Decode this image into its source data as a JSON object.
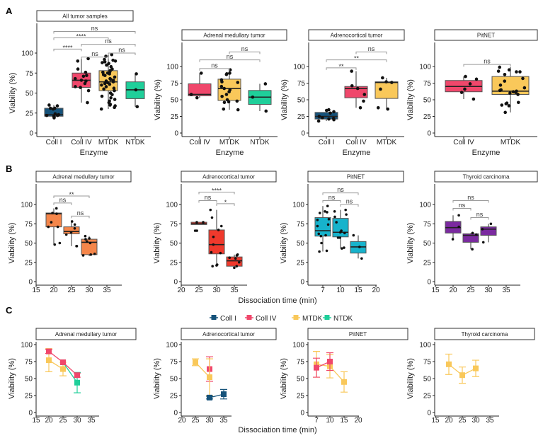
{
  "panel_letters": [
    "A",
    "B",
    "C"
  ],
  "legend": [
    {
      "name": "Coll I",
      "color": "#15527a"
    },
    {
      "name": "Coll IV",
      "color": "#f0476b"
    },
    {
      "name": "MTDK",
      "color": "#f9c85a"
    },
    {
      "name": "NTDK",
      "color": "#1fcf9a"
    }
  ],
  "chart_data": [
    {
      "id": "A1",
      "type": "box",
      "title": "All tumor samples",
      "xlabel": "Enzyme",
      "ylabel": "Viability (%)",
      "yticks": [
        0,
        25,
        50,
        75,
        100
      ],
      "categories": [
        "Coll I",
        "Coll IV",
        "MTDK",
        "NTDK"
      ],
      "boxes": [
        {
          "cat": "Coll I",
          "color": "#15527a",
          "min": 18,
          "q1": 21,
          "median": 23,
          "q3": 31,
          "max": 35,
          "points": [
            35,
            34,
            31,
            30,
            31,
            23,
            22,
            21,
            20,
            19,
            22,
            24
          ]
        },
        {
          "cat": "Coll IV",
          "color": "#f0476b",
          "min": 38,
          "q1": 57,
          "median": 66,
          "q3": 75,
          "max": 93,
          "points": [
            93,
            90,
            80,
            76,
            72,
            71,
            68,
            66,
            65,
            62,
            58,
            57,
            53,
            38
          ]
        },
        {
          "cat": "MTDK",
          "color": "#f9c85a",
          "min": 30,
          "q1": 53,
          "median": 64,
          "q3": 78,
          "max": 98,
          "points": [
            98,
            96,
            92,
            91,
            90,
            89,
            88,
            87,
            85,
            83,
            80,
            78,
            77,
            76,
            75,
            74,
            73,
            72,
            70,
            68,
            67,
            66,
            65,
            64,
            63,
            62,
            61,
            60,
            58,
            56,
            55,
            53,
            50,
            48,
            46,
            44,
            42,
            40,
            38,
            36,
            35,
            34,
            32,
            30
          ]
        },
        {
          "cat": "NTDK",
          "color": "#1fcf9a",
          "min": 33,
          "q1": 43,
          "median": 54,
          "q3": 64,
          "max": 74,
          "points": [
            74,
            54,
            33
          ]
        }
      ],
      "comparisons": [
        {
          "from": "Coll IV",
          "to": "MTDK",
          "label": "ns"
        },
        {
          "from": "MTDK",
          "to": "NTDK",
          "label": "ns"
        },
        {
          "from": "Coll I",
          "to": "Coll IV",
          "label": "****"
        },
        {
          "from": "Coll IV",
          "to": "NTDK",
          "label": "ns"
        },
        {
          "from": "Coll I",
          "to": "MTDK",
          "label": "****"
        },
        {
          "from": "Coll I",
          "to": "NTDK",
          "label": "ns"
        }
      ]
    },
    {
      "id": "A2",
      "type": "box",
      "title": "Adrenal medullary tumor",
      "xlabel": "Enzyme",
      "ylabel": "Viability (%)",
      "yticks": [
        0,
        25,
        50,
        75,
        100
      ],
      "categories": [
        "Coll IV",
        "MTDK",
        "NTDK"
      ],
      "boxes": [
        {
          "cat": "Coll IV",
          "color": "#f0476b",
          "min": 53,
          "q1": 56,
          "median": 58,
          "q3": 74,
          "max": 90,
          "points": [
            90,
            58,
            53
          ]
        },
        {
          "cat": "MTDK",
          "color": "#f9c85a",
          "min": 35,
          "q1": 49,
          "median": 67,
          "q3": 81,
          "max": 95,
          "points": [
            95,
            90,
            89,
            88,
            80,
            77,
            76,
            70,
            67,
            65,
            62,
            58,
            55,
            50,
            48,
            47,
            46,
            36,
            35
          ]
        },
        {
          "cat": "NTDK",
          "color": "#1fcf9a",
          "min": 33,
          "q1": 43,
          "median": 54,
          "q3": 64,
          "max": 74,
          "points": [
            74,
            54,
            33
          ]
        }
      ],
      "comparisons": [
        {
          "from": "Coll IV",
          "to": "MTDK",
          "label": "ns"
        },
        {
          "from": "Coll IV",
          "to": "NTDK",
          "label": "ns"
        },
        {
          "from": "MTDK",
          "to": "NTDK",
          "label": "ns"
        }
      ]
    },
    {
      "id": "A3",
      "type": "box",
      "title": "Adrenocortical tumor",
      "xlabel": "Enzyme",
      "ylabel": "Viability (%)",
      "yticks": [
        0,
        25,
        50,
        75,
        100
      ],
      "categories": [
        "Coll I",
        "Coll IV",
        "MTDK"
      ],
      "boxes": [
        {
          "cat": "Coll I",
          "color": "#15527a",
          "min": 18,
          "q1": 21,
          "median": 25,
          "q3": 31,
          "max": 35,
          "points": [
            35,
            34,
            32,
            30,
            25,
            23,
            22,
            21,
            20,
            18
          ]
        },
        {
          "cat": "Coll IV",
          "color": "#f0476b",
          "min": 38,
          "q1": 53,
          "median": 67,
          "q3": 70,
          "max": 93,
          "points": [
            93,
            71,
            67,
            58,
            48,
            38
          ]
        },
        {
          "cat": "MTDK",
          "color": "#f9c85a",
          "min": 36,
          "q1": 52,
          "median": 76,
          "q3": 77,
          "max": 83,
          "points": [
            83,
            77,
            76,
            66,
            38,
            36
          ]
        }
      ],
      "comparisons": [
        {
          "from": "Coll I",
          "to": "Coll IV",
          "label": "**"
        },
        {
          "from": "Coll I",
          "to": "MTDK",
          "label": "**"
        },
        {
          "from": "Coll IV",
          "to": "MTDK",
          "label": "ns"
        }
      ]
    },
    {
      "id": "A4",
      "type": "box",
      "title": "PitNET",
      "xlabel": "Enzyme",
      "ylabel": "Viability (%)",
      "yticks": [
        0,
        25,
        50,
        75,
        100
      ],
      "categories": [
        "Coll IV",
        "MTDK"
      ],
      "boxes": [
        {
          "cat": "Coll IV",
          "color": "#f0476b",
          "min": 51,
          "q1": 62,
          "median": 70,
          "q3": 79,
          "max": 85,
          "points": [
            85,
            81,
            74,
            66,
            61,
            51
          ]
        },
        {
          "cat": "MTDK",
          "color": "#f9c85a",
          "min": 31,
          "q1": 58,
          "median": 63,
          "q3": 85,
          "max": 99,
          "points": [
            99,
            95,
            93,
            92,
            92,
            88,
            82,
            78,
            72,
            68,
            65,
            64,
            63,
            62,
            61,
            60,
            58,
            46,
            45,
            44,
            42,
            41,
            31
          ]
        }
      ],
      "comparisons": [
        {
          "from": "Coll IV",
          "to": "MTDK",
          "label": "ns"
        }
      ]
    },
    {
      "id": "B1",
      "type": "box",
      "title": "Adrenal medullary tumor",
      "ylabel": "Viability (%)",
      "yticks": [
        0,
        25,
        50,
        75,
        100
      ],
      "xticks": [
        15,
        20,
        25,
        30,
        35
      ],
      "boxes": [
        {
          "cat": 20,
          "color": "#f5864a",
          "min": 48,
          "q1": 71,
          "median": 88,
          "q3": 89,
          "max": 95,
          "points": [
            95,
            89,
            88,
            77,
            71,
            71,
            50,
            48
          ]
        },
        {
          "cat": 25,
          "color": "#f5864a",
          "min": 46,
          "q1": 62,
          "median": 65,
          "q3": 71,
          "max": 78,
          "points": [
            78,
            74,
            69,
            64,
            61,
            46,
            46
          ]
        },
        {
          "cat": 30,
          "color": "#f5864a",
          "min": 33,
          "q1": 35,
          "median": 51,
          "q3": 55,
          "max": 59,
          "points": [
            59,
            56,
            55,
            52,
            50,
            36,
            35,
            34
          ]
        }
      ],
      "comparisons": [
        {
          "from": 20,
          "to": 25,
          "label": "ns"
        },
        {
          "from": 20,
          "to": 30,
          "label": "**"
        },
        {
          "from": 25,
          "to": 30,
          "label": "ns"
        }
      ]
    },
    {
      "id": "B2",
      "type": "box",
      "title": "Adrenocortical tumor",
      "ylabel": "Viability (%)",
      "yticks": [
        0,
        25,
        50,
        75,
        100
      ],
      "xticks": [
        20,
        25,
        30,
        35
      ],
      "boxes": [
        {
          "cat": 25,
          "color": "#f0392c",
          "min": 74,
          "q1": 74,
          "median": 75,
          "q3": 77,
          "max": 77,
          "points": [
            77,
            77,
            66,
            66
          ]
        },
        {
          "cat": 30,
          "color": "#f0392c",
          "min": 20,
          "q1": 36,
          "median": 48,
          "q3": 67,
          "max": 93,
          "points": [
            93,
            83,
            72,
            67,
            58,
            48,
            38,
            37,
            22,
            21,
            20
          ]
        },
        {
          "cat": 35,
          "color": "#f0392c",
          "min": 18,
          "q1": 20,
          "median": 27,
          "q3": 32,
          "max": 35,
          "points": [
            35,
            34,
            31,
            30,
            25,
            20,
            18
          ]
        }
      ],
      "comparisons": [
        {
          "from": 25,
          "to": 30,
          "label": "ns"
        },
        {
          "from": 25,
          "to": 35,
          "label": "****"
        },
        {
          "from": 30,
          "to": 35,
          "label": "*"
        }
      ]
    },
    {
      "id": "B3",
      "type": "box",
      "title": "PitNET",
      "ylabel": "Viability (%)",
      "yticks": [
        0,
        25,
        50,
        75,
        100
      ],
      "xticks": [
        7,
        10,
        15,
        20
      ],
      "boxes": [
        {
          "cat": 7,
          "color": "#17b3cc",
          "min": 39,
          "q1": 59,
          "median": 66,
          "q3": 83,
          "max": 98,
          "points": [
            98,
            91,
            90,
            89,
            81,
            80,
            74,
            72,
            62,
            60,
            59,
            50,
            40,
            39
          ]
        },
        {
          "cat": 10,
          "color": "#17b3cc",
          "min": 43,
          "q1": 58,
          "median": 64,
          "q3": 82,
          "max": 93,
          "points": [
            93,
            91,
            87,
            84,
            77,
            66,
            64,
            63,
            57,
            57,
            44,
            43
          ]
        },
        {
          "cat": 15,
          "color": "#17b3cc",
          "min": 30,
          "q1": 37,
          "median": 45,
          "q3": 52,
          "max": 60,
          "points": [
            60,
            45,
            30
          ]
        }
      ],
      "comparisons": [
        {
          "from": 7,
          "to": 15,
          "label": "ns"
        },
        {
          "from": 7,
          "to": 10,
          "label": "ns"
        },
        {
          "from": 10,
          "to": 15,
          "label": "ns"
        }
      ]
    },
    {
      "id": "B4",
      "type": "box",
      "title": "Thyroid carcinoma",
      "ylabel": "Viability (%)",
      "yticks": [
        0,
        25,
        50,
        75,
        100
      ],
      "xticks": [
        15,
        20,
        25,
        30,
        35
      ],
      "boxes": [
        {
          "cat": 20,
          "color": "#7b2aa0",
          "min": 56,
          "q1": 63,
          "median": 70,
          "q3": 78,
          "max": 86,
          "points": [
            86,
            71,
            55
          ]
        },
        {
          "cat": 25,
          "color": "#7b2aa0",
          "min": 42,
          "q1": 51,
          "median": 60,
          "q3": 62,
          "max": 63,
          "points": [
            63,
            61,
            42
          ]
        },
        {
          "cat": 30,
          "color": "#7b2aa0",
          "min": 51,
          "q1": 60,
          "median": 68,
          "q3": 71,
          "max": 75,
          "points": [
            75,
            68,
            51
          ]
        }
      ],
      "comparisons": [
        {
          "from": 20,
          "to": 30,
          "label": "ns"
        },
        {
          "from": 20,
          "to": 25,
          "label": "ns"
        },
        {
          "from": 25,
          "to": 30,
          "label": "ns"
        }
      ]
    },
    {
      "id": "C1",
      "type": "line",
      "title": "Adrenal medullary tumor",
      "ylabel": "Viability (%)",
      "yticks": [
        0,
        25,
        50,
        75,
        100
      ],
      "xticks": [
        15,
        20,
        25,
        30,
        35
      ],
      "series": [
        {
          "name": "MTDK",
          "color": "#f9c85a",
          "points": [
            {
              "x": 20,
              "y": 77,
              "err": 17
            },
            {
              "x": 25,
              "y": 64,
              "err": 10
            }
          ]
        },
        {
          "name": "NTDK",
          "color": "#1fcf9a",
          "points": [
            {
              "x": 25,
              "y": 74,
              "err": 0
            },
            {
              "x": 30,
              "y": 44,
              "err": 15
            }
          ]
        },
        {
          "name": "Coll IV",
          "color": "#f0476b",
          "points": [
            {
              "x": 20,
              "y": 90,
              "err": 3
            },
            {
              "x": 25,
              "y": 74,
              "err": 0
            },
            {
              "x": 30,
              "y": 55,
              "err": 3
            }
          ]
        }
      ]
    },
    {
      "id": "C2",
      "type": "line",
      "title": "Adrenocortical tumor",
      "ylabel": "Viability (%)",
      "yticks": [
        0,
        25,
        50,
        75,
        100
      ],
      "xticks": [
        20,
        25,
        30,
        35
      ],
      "series": [
        {
          "name": "Coll IV",
          "color": "#f0476b",
          "points": [
            {
              "x": 30,
              "y": 64,
              "err": 18
            }
          ]
        },
        {
          "name": "MTDK",
          "color": "#f9c85a",
          "points": [
            {
              "x": 25,
              "y": 74,
              "err": 5
            },
            {
              "x": 30,
              "y": 52,
              "err": 27
            }
          ]
        },
        {
          "name": "Coll I",
          "color": "#15527a",
          "points": [
            {
              "x": 30,
              "y": 22,
              "err": 2
            },
            {
              "x": 35,
              "y": 27,
              "err": 7
            }
          ]
        }
      ]
    },
    {
      "id": "C3",
      "type": "line",
      "title": "PitNET",
      "ylabel": "Viability (%)",
      "yticks": [
        0,
        25,
        50,
        75,
        100
      ],
      "xticks": [
        7,
        10,
        15,
        20
      ],
      "series": [
        {
          "name": "MTDK",
          "color": "#f9c85a",
          "points": [
            {
              "x": 7,
              "y": 71,
              "err": 19
            },
            {
              "x": 10,
              "y": 68,
              "err": 17
            },
            {
              "x": 15,
              "y": 45,
              "err": 15
            }
          ]
        },
        {
          "name": "Coll IV",
          "color": "#f0476b",
          "points": [
            {
              "x": 7,
              "y": 66,
              "err": 14
            },
            {
              "x": 10,
              "y": 75,
              "err": 13
            }
          ]
        }
      ]
    },
    {
      "id": "C4",
      "type": "line",
      "title": "Thyroid carcinoma",
      "ylabel": "Viability (%)",
      "yticks": [
        0,
        25,
        50,
        75,
        100
      ],
      "xticks": [
        15,
        20,
        25,
        30,
        35
      ],
      "series": [
        {
          "name": "MTDK",
          "color": "#f9c85a",
          "points": [
            {
              "x": 20,
              "y": 71,
              "err": 15
            },
            {
              "x": 25,
              "y": 55,
              "err": 12
            },
            {
              "x": 30,
              "y": 65,
              "err": 12
            }
          ]
        }
      ]
    }
  ],
  "row_b_xlabel": "Dissociation time (min)",
  "row_c_xlabel": "Dissociation time (min)"
}
